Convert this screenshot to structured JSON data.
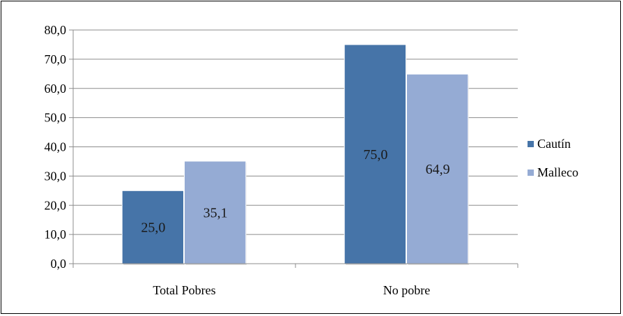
{
  "chart_data": {
    "type": "bar",
    "title": "",
    "xlabel": "",
    "ylabel": "",
    "categories": [
      "Total Pobres",
      "No pobre"
    ],
    "series": [
      {
        "name": "Cautín",
        "values": [
          25.0,
          75.0
        ],
        "labels": [
          "25,0",
          "75,0"
        ],
        "color": "#4674a8"
      },
      {
        "name": "Malleco",
        "values": [
          35.1,
          64.9
        ],
        "labels": [
          "35,1",
          "64,9"
        ],
        "color": "#95abd4"
      }
    ],
    "ylim": [
      0,
      80
    ],
    "yticks": [
      0,
      10,
      20,
      30,
      40,
      50,
      60,
      70,
      80
    ],
    "ytick_labels": [
      "0,0",
      "10,0",
      "20,0",
      "30,0",
      "40,0",
      "50,0",
      "60,0",
      "70,0",
      "80,0"
    ],
    "grid": true,
    "legend_position": "right"
  }
}
